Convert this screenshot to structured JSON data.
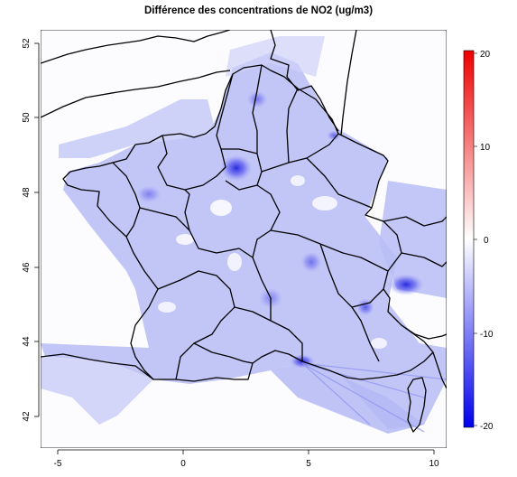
{
  "title": "Différence des concentrations de NO2 (ug/m3)",
  "x_ticks": [
    "-5",
    "0",
    "5",
    "10"
  ],
  "y_ticks": [
    "42",
    "44",
    "46",
    "48",
    "50",
    "52"
  ],
  "colorbar": {
    "ticks": [
      "20",
      "10",
      "0",
      "-10",
      "-20"
    ],
    "colors": {
      "high": "#ee0000",
      "mid": "#ffffff",
      "low": "#0000ee"
    }
  },
  "colors": {
    "background": "#fcfcff",
    "land_tint": "#b8bcf7",
    "border": "#000000"
  }
}
